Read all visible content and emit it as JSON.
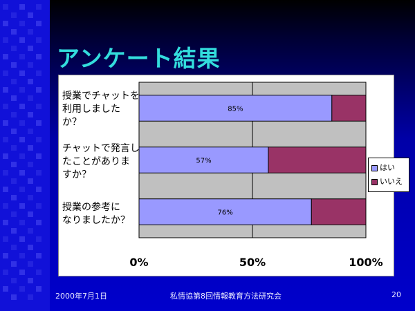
{
  "slide": {
    "title": "アンケート結果",
    "footer_date": "2000年7月1日",
    "footer_org": "私情協第8回情報教育方法研究会",
    "page_number": "20"
  },
  "chart_data": {
    "type": "bar",
    "orientation": "horizontal",
    "stacked": "percent",
    "categories": [
      "授業でチャットを\n利用しました\nか？",
      "チャットで発言し\nたことがありま\nすか？",
      "授業の参考に\nなりましたか？"
    ],
    "series": [
      {
        "name": "はい",
        "values": [
          85,
          57,
          76
        ],
        "color": "#9999ff"
      },
      {
        "name": "いいえ",
        "values": [
          15,
          43,
          24
        ],
        "color": "#993366"
      }
    ],
    "data_labels": [
      "85%",
      "57%",
      "76%"
    ],
    "xlim": [
      0,
      100
    ],
    "x_ticks": [
      "0%",
      "50%",
      "100%"
    ],
    "grid": true,
    "plot_background": "#c0c0c0",
    "legend_position": "right"
  }
}
